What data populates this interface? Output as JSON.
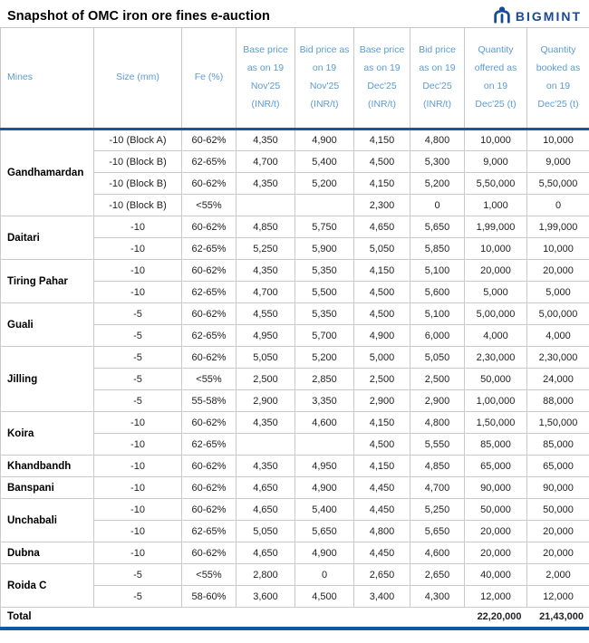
{
  "title": "Snapshot of OMC iron ore fines e-auction",
  "logo": {
    "text": "BIGMINT",
    "color": "#1b4a94"
  },
  "colors": {
    "header_text": "#5b9bd5",
    "accent_border": "#1158a5",
    "grid_line": "#c9c9c9",
    "body_text": "#212226"
  },
  "table": {
    "columns": [
      "Mines",
      "Size (mm)",
      "Fe (%)",
      "Base price as on 19 Nov'25 (INR/t)",
      "Bid price as on 19 Nov'25 (INR/t)",
      "Base price as on 19 Dec'25 (INR/t)",
      "Bid price as on 19 Dec'25 (INR/t)",
      "Quantity offered as on 19 Dec'25 (t)",
      "Quantity booked as on 19 Dec'25 (t)"
    ],
    "groups": [
      {
        "mine": "Gandhamardan",
        "rows": [
          [
            "-10 (Block A)",
            "60-62%",
            "4,350",
            "4,900",
            "4,150",
            "4,800",
            "10,000",
            "10,000"
          ],
          [
            "-10 (Block B)",
            "62-65%",
            "4,700",
            "5,400",
            "4,500",
            "5,300",
            "9,000",
            "9,000"
          ],
          [
            "-10 (Block B)",
            "60-62%",
            "4,350",
            "5,200",
            "4,150",
            "5,200",
            "5,50,000",
            "5,50,000"
          ],
          [
            "-10 (Block B)",
            "<55%",
            "",
            "",
            "2,300",
            "0",
            "1,000",
            "0"
          ]
        ]
      },
      {
        "mine": "Daitari",
        "rows": [
          [
            "-10",
            "60-62%",
            "4,850",
            "5,750",
            "4,650",
            "5,650",
            "1,99,000",
            "1,99,000"
          ],
          [
            "-10",
            "62-65%",
            "5,250",
            "5,900",
            "5,050",
            "5,850",
            "10,000",
            "10,000"
          ]
        ]
      },
      {
        "mine": "Tiring Pahar",
        "rows": [
          [
            "-10",
            "60-62%",
            "4,350",
            "5,350",
            "4,150",
            "5,100",
            "20,000",
            "20,000"
          ],
          [
            "-10",
            "62-65%",
            "4,700",
            "5,500",
            "4,500",
            "5,600",
            "5,000",
            "5,000"
          ]
        ]
      },
      {
        "mine": "Guali",
        "rows": [
          [
            "-5",
            "60-62%",
            "4,550",
            "5,350",
            "4,500",
            "5,100",
            "5,00,000",
            "5,00,000"
          ],
          [
            "-5",
            "62-65%",
            "4,950",
            "5,700",
            "4,900",
            "6,000",
            "4,000",
            "4,000"
          ]
        ]
      },
      {
        "mine": "Jilling",
        "rows": [
          [
            "-5",
            "60-62%",
            "5,050",
            "5,200",
            "5,000",
            "5,050",
            "2,30,000",
            "2,30,000"
          ],
          [
            "-5",
            "<55%",
            "2,500",
            "2,850",
            "2,500",
            "2,500",
            "50,000",
            "24,000"
          ],
          [
            "-5",
            "55-58%",
            "2,900",
            "3,350",
            "2,900",
            "2,900",
            "1,00,000",
            "88,000"
          ]
        ]
      },
      {
        "mine": "Koira",
        "rows": [
          [
            "-10",
            "60-62%",
            "4,350",
            "4,600",
            "4,150",
            "4,800",
            "1,50,000",
            "1,50,000"
          ],
          [
            "-10",
            "62-65%",
            "",
            "",
            "4,500",
            "5,550",
            "85,000",
            "85,000"
          ]
        ]
      },
      {
        "mine": "Khandbandh",
        "rows": [
          [
            "-10",
            "60-62%",
            "4,350",
            "4,950",
            "4,150",
            "4,850",
            "65,000",
            "65,000"
          ]
        ]
      },
      {
        "mine": "Banspani",
        "rows": [
          [
            "-10",
            "60-62%",
            "4,650",
            "4,900",
            "4,450",
            "4,700",
            "90,000",
            "90,000"
          ]
        ]
      },
      {
        "mine": "Unchabali",
        "rows": [
          [
            "-10",
            "60-62%",
            "4,650",
            "5,400",
            "4,450",
            "5,250",
            "50,000",
            "50,000"
          ],
          [
            "-10",
            "62-65%",
            "5,050",
            "5,650",
            "4,800",
            "5,650",
            "20,000",
            "20,000"
          ]
        ]
      },
      {
        "mine": "Dubna",
        "rows": [
          [
            "-10",
            "60-62%",
            "4,650",
            "4,900",
            "4,450",
            "4,600",
            "20,000",
            "20,000"
          ]
        ]
      },
      {
        "mine": "Roida C",
        "rows": [
          [
            "-5",
            "<55%",
            "2,800",
            "0",
            "2,650",
            "2,650",
            "40,000",
            "2,000"
          ],
          [
            "-5",
            "58-60%",
            "3,600",
            "4,500",
            "3,400",
            "4,300",
            "12,000",
            "12,000"
          ]
        ]
      }
    ],
    "total": {
      "label": "Total",
      "quantity_offered": "22,20,000",
      "quantity_booked": "21,43,000"
    }
  },
  "chart_data": {
    "type": "table",
    "title": "Snapshot of OMC iron ore fines e-auction",
    "columns": [
      "Mines",
      "Size (mm)",
      "Fe (%)",
      "Base price as on 19 Nov'25 (INR/t)",
      "Bid price as on 19 Nov'25 (INR/t)",
      "Base price as on 19 Dec'25 (INR/t)",
      "Bid price as on 19 Dec'25 (INR/t)",
      "Quantity offered as on 19 Dec'25 (t)",
      "Quantity booked as on 19 Dec'25 (t)"
    ],
    "rows": [
      [
        "Gandhamardan",
        "-10 (Block A)",
        "60-62%",
        "4,350",
        "4,900",
        "4,150",
        "4,800",
        "10,000",
        "10,000"
      ],
      [
        "Gandhamardan",
        "-10 (Block B)",
        "62-65%",
        "4,700",
        "5,400",
        "4,500",
        "5,300",
        "9,000",
        "9,000"
      ],
      [
        "Gandhamardan",
        "-10 (Block B)",
        "60-62%",
        "4,350",
        "5,200",
        "4,150",
        "5,200",
        "5,50,000",
        "5,50,000"
      ],
      [
        "Gandhamardan",
        "-10 (Block B)",
        "<55%",
        "",
        "",
        "2,300",
        "0",
        "1,000",
        "0"
      ],
      [
        "Daitari",
        "-10",
        "60-62%",
        "4,850",
        "5,750",
        "4,650",
        "5,650",
        "1,99,000",
        "1,99,000"
      ],
      [
        "Daitari",
        "-10",
        "62-65%",
        "5,250",
        "5,900",
        "5,050",
        "5,850",
        "10,000",
        "10,000"
      ],
      [
        "Tiring Pahar",
        "-10",
        "60-62%",
        "4,350",
        "5,350",
        "4,150",
        "5,100",
        "20,000",
        "20,000"
      ],
      [
        "Tiring Pahar",
        "-10",
        "62-65%",
        "4,700",
        "5,500",
        "4,500",
        "5,600",
        "5,000",
        "5,000"
      ],
      [
        "Guali",
        "-5",
        "60-62%",
        "4,550",
        "5,350",
        "4,500",
        "5,100",
        "5,00,000",
        "5,00,000"
      ],
      [
        "Guali",
        "-5",
        "62-65%",
        "4,950",
        "5,700",
        "4,900",
        "6,000",
        "4,000",
        "4,000"
      ],
      [
        "Jilling",
        "-5",
        "60-62%",
        "5,050",
        "5,200",
        "5,000",
        "5,050",
        "2,30,000",
        "2,30,000"
      ],
      [
        "Jilling",
        "-5",
        "<55%",
        "2,500",
        "2,850",
        "2,500",
        "2,500",
        "50,000",
        "24,000"
      ],
      [
        "Jilling",
        "-5",
        "55-58%",
        "2,900",
        "3,350",
        "2,900",
        "2,900",
        "1,00,000",
        "88,000"
      ],
      [
        "Koira",
        "-10",
        "60-62%",
        "4,350",
        "4,600",
        "4,150",
        "4,800",
        "1,50,000",
        "1,50,000"
      ],
      [
        "Koira",
        "-10",
        "62-65%",
        "",
        "",
        "4,500",
        "5,550",
        "85,000",
        "85,000"
      ],
      [
        "Khandbandh",
        "-10",
        "60-62%",
        "4,350",
        "4,950",
        "4,150",
        "4,850",
        "65,000",
        "65,000"
      ],
      [
        "Banspani",
        "-10",
        "60-62%",
        "4,650",
        "4,900",
        "4,450",
        "4,700",
        "90,000",
        "90,000"
      ],
      [
        "Unchabali",
        "-10",
        "60-62%",
        "4,650",
        "5,400",
        "4,450",
        "5,250",
        "50,000",
        "50,000"
      ],
      [
        "Unchabali",
        "-10",
        "62-65%",
        "5,050",
        "5,650",
        "4,800",
        "5,650",
        "20,000",
        "20,000"
      ],
      [
        "Dubna",
        "-10",
        "60-62%",
        "4,650",
        "4,900",
        "4,450",
        "4,600",
        "20,000",
        "20,000"
      ],
      [
        "Roida C",
        "-5",
        "<55%",
        "2,800",
        "0",
        "2,650",
        "2,650",
        "40,000",
        "2,000"
      ],
      [
        "Roida C",
        "-5",
        "58-60%",
        "3,600",
        "4,500",
        "3,400",
        "4,300",
        "12,000",
        "12,000"
      ],
      [
        "Total",
        "",
        "",
        "",
        "",
        "",
        "",
        "22,20,000",
        "21,43,000"
      ]
    ]
  }
}
